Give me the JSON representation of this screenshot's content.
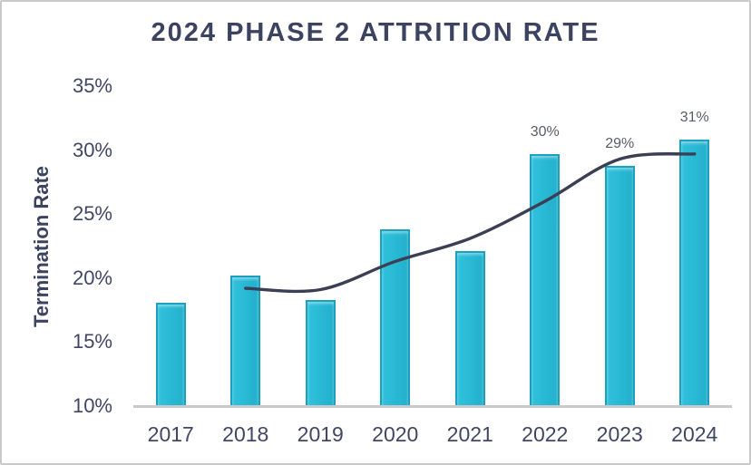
{
  "window": {
    "background": "#ffffff",
    "border_color": "#c9c9c9"
  },
  "chart_data": {
    "type": "bar",
    "title": "2024 PHASE 2 ATTRITION RATE",
    "xlabel": "",
    "ylabel": "Termination Rate",
    "categories": [
      "2017",
      "2018",
      "2019",
      "2020",
      "2021",
      "2022",
      "2023",
      "2024"
    ],
    "series": [
      {
        "name": "termination-rate-bars",
        "type": "bar",
        "values": [
          18.1,
          20.2,
          18.3,
          23.8,
          22.1,
          29.7,
          28.8,
          30.8
        ],
        "data_labels": [
          "",
          "",
          "",
          "",
          "",
          "30%",
          "29%",
          "31%"
        ],
        "fill_color": "#28b9d5",
        "border_color": "#1d9fbe"
      },
      {
        "name": "trend-line",
        "type": "line",
        "values": [
          null,
          19.2,
          19.1,
          21.3,
          23.1,
          26.0,
          29.3,
          29.7
        ],
        "color": "#3a3f54",
        "smooth": true
      }
    ],
    "y_axis": {
      "min": 10,
      "max": 35,
      "step": 5,
      "tick_labels": [
        "35%",
        "30%",
        "25%",
        "20%",
        "15%",
        "10%"
      ],
      "tick_values": [
        35,
        30,
        25,
        20,
        15,
        10
      ],
      "grid": false
    },
    "ylim": [
      10,
      35
    ],
    "legend": "none",
    "colors": {
      "title_text": "#3b4361",
      "axis_tick_text": "#404764",
      "data_label_text": "#585d66",
      "axis_line": "#c8c9cb"
    }
  }
}
